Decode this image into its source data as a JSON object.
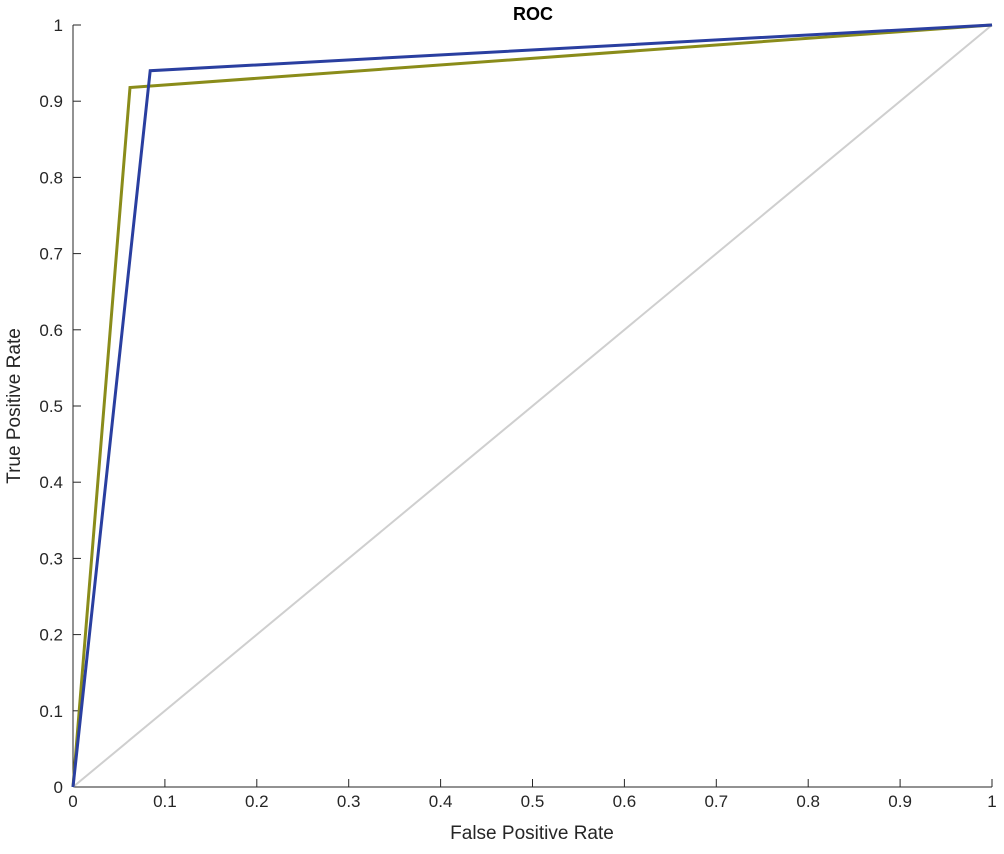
{
  "chart_data": {
    "type": "line",
    "title": "ROC",
    "xlabel": "False Positive Rate",
    "ylabel": "True Positive Rate",
    "xlim": [
      0,
      1
    ],
    "ylim": [
      0,
      1
    ],
    "xticks": [
      "0",
      "0.1",
      "0.2",
      "0.3",
      "0.4",
      "0.5",
      "0.6",
      "0.7",
      "0.8",
      "0.9",
      "1"
    ],
    "yticks": [
      "0",
      "0.1",
      "0.2",
      "0.3",
      "0.4",
      "0.5",
      "0.6",
      "0.7",
      "0.8",
      "0.9",
      "1"
    ],
    "grid": false,
    "legend": "none",
    "series": [
      {
        "color": "#2a3fa0",
        "x": [
          0,
          0.084,
          1
        ],
        "y": [
          0,
          0.94,
          1
        ]
      },
      {
        "color": "#8a8c1a",
        "x": [
          0,
          0.062,
          1
        ],
        "y": [
          0,
          0.918,
          1
        ]
      },
      {
        "color": "#cfcfcf",
        "x": [
          0,
          1
        ],
        "y": [
          0,
          1
        ]
      }
    ]
  }
}
